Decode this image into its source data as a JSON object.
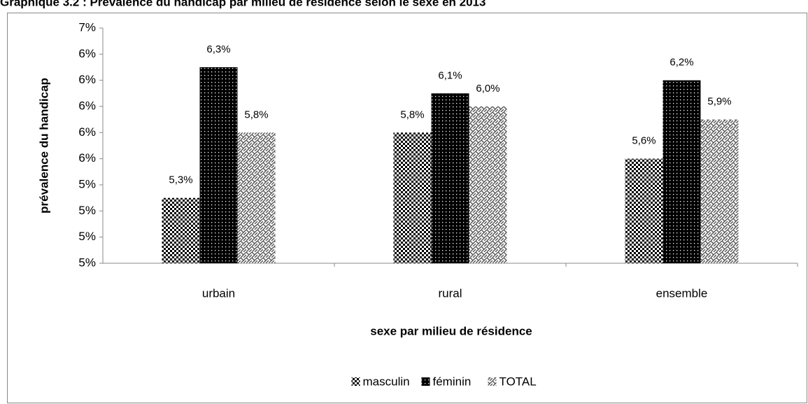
{
  "chart_data": {
    "type": "bar",
    "title": "Graphique 3.2 : Prévalence du handicap par milieu de résidence selon le sexe en 2013",
    "xlabel": "sexe par milieu de résidence",
    "ylabel": "prévalence du handicap",
    "categories": [
      "urbain",
      "rural",
      "ensemble"
    ],
    "series": [
      {
        "name": "masculin",
        "color": "#000000",
        "values": [
          5.3,
          5.8,
          5.6
        ],
        "value_labels": [
          "5,3%",
          "5,8%",
          "5,6%"
        ]
      },
      {
        "name": "féminin",
        "color": "#000000",
        "values": [
          6.3,
          6.1,
          6.2
        ],
        "value_labels": [
          "6,3%",
          "6,1%",
          "6,2%"
        ]
      },
      {
        "name": "TOTAL",
        "color": "#808080",
        "values": [
          5.8,
          6.0,
          5.9
        ],
        "value_labels": [
          "5,8%",
          "6,0%",
          "5,9%"
        ]
      }
    ],
    "ylim": [
      4.8,
      6.6
    ],
    "yticks": [
      {
        "value": 4.8,
        "label": "5%"
      },
      {
        "value": 5.0,
        "label": "5%"
      },
      {
        "value": 5.2,
        "label": "5%"
      },
      {
        "value": 5.4,
        "label": "5%"
      },
      {
        "value": 5.6,
        "label": "6%"
      },
      {
        "value": 5.8,
        "label": "6%"
      },
      {
        "value": 6.0,
        "label": "6%"
      },
      {
        "value": 6.2,
        "label": "6%"
      },
      {
        "value": 6.4,
        "label": "6%"
      },
      {
        "value": 6.6,
        "label": "7%"
      }
    ],
    "grid": false,
    "legend": "bottom"
  }
}
